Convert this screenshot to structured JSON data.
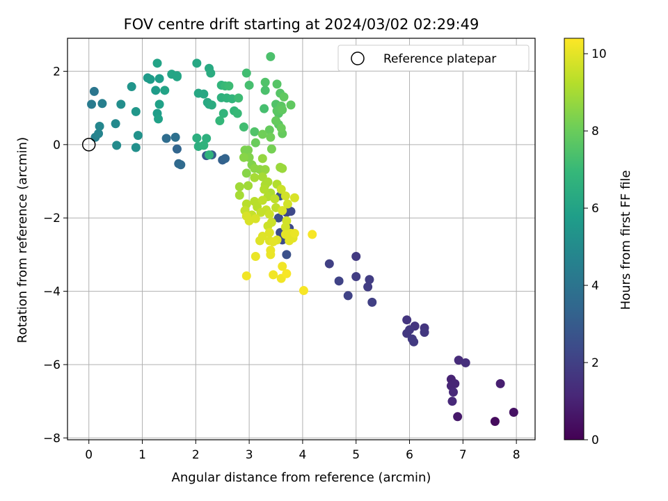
{
  "chart_data": {
    "type": "scatter",
    "title": "FOV centre drift starting at 2024/03/02 02:29:49",
    "xlabel": "Angular distance from reference (arcmin)",
    "ylabel": "Rotation from reference (arcmin)",
    "xlim": [
      -0.4,
      8.35
    ],
    "ylim": [
      -8.05,
      2.9
    ],
    "xticks": [
      0,
      1,
      2,
      3,
      4,
      5,
      6,
      7,
      8
    ],
    "xtick_labels": [
      "0",
      "1",
      "2",
      "3",
      "4",
      "5",
      "6",
      "7",
      "8"
    ],
    "yticks": [
      2,
      0,
      -2,
      -4,
      -6,
      -8
    ],
    "ytick_labels": [
      "2",
      "0",
      "−2",
      "−4",
      "−6",
      "−8"
    ],
    "grid": true,
    "legend": {
      "position": "top-right",
      "entries": [
        "Reference platepar"
      ]
    },
    "reference_point": {
      "x": 0,
      "y": 0
    },
    "colorbar": {
      "label": "Hours from first FF file",
      "range": [
        0,
        10.4
      ],
      "ticks": [
        0,
        2,
        4,
        6,
        8,
        10
      ],
      "tick_labels": [
        "0",
        "2",
        "4",
        "6",
        "8",
        "10"
      ],
      "colormap": "viridis",
      "colors": [
        "#440154",
        "#482878",
        "#3e4989",
        "#31688e",
        "#26828e",
        "#1f9e89",
        "#35b779",
        "#6ece58",
        "#b5de2b",
        "#fde725"
      ]
    },
    "series": [
      {
        "points": [
          [
            7.6,
            -7.55,
            0.3
          ],
          [
            7.95,
            -7.3,
            0.5
          ],
          [
            6.9,
            -7.42,
            0.7
          ],
          [
            7.7,
            -6.52,
            0.9
          ],
          [
            6.78,
            -6.4,
            1.0
          ],
          [
            6.85,
            -6.52,
            1.1
          ],
          [
            6.78,
            -6.58,
            1.1
          ],
          [
            6.82,
            -6.75,
            1.2
          ],
          [
            6.8,
            -7.0,
            1.2
          ],
          [
            6.92,
            -5.88,
            1.3
          ],
          [
            7.05,
            -5.95,
            1.4
          ],
          [
            5.95,
            -4.78,
            1.6
          ],
          [
            6.1,
            -4.95,
            1.6
          ],
          [
            6.28,
            -5.0,
            1.6
          ],
          [
            6.0,
            -5.05,
            1.7
          ],
          [
            5.95,
            -5.15,
            1.7
          ],
          [
            6.28,
            -5.12,
            1.7
          ],
          [
            6.05,
            -5.3,
            1.8
          ],
          [
            6.08,
            -5.38,
            1.8
          ],
          [
            5.0,
            -3.05,
            1.8
          ],
          [
            5.0,
            -3.6,
            1.9
          ],
          [
            5.25,
            -3.68,
            1.9
          ],
          [
            5.22,
            -3.88,
            1.9
          ],
          [
            5.3,
            -4.3,
            2.0
          ],
          [
            4.5,
            -3.25,
            2.0
          ],
          [
            4.68,
            -3.72,
            2.1
          ],
          [
            4.85,
            -4.12,
            2.1
          ],
          [
            3.7,
            -1.85,
            2.2
          ],
          [
            3.78,
            -1.82,
            2.3
          ],
          [
            3.75,
            -2.28,
            2.3
          ],
          [
            3.58,
            -2.4,
            2.4
          ],
          [
            3.62,
            -2.6,
            2.4
          ],
          [
            3.55,
            -2.0,
            2.5
          ],
          [
            3.7,
            -3.0,
            2.6
          ],
          [
            3.58,
            -1.4,
            2.7
          ],
          [
            2.2,
            -0.3,
            2.9
          ],
          [
            2.3,
            -0.28,
            3.1
          ],
          [
            2.5,
            -0.42,
            3.2
          ],
          [
            2.55,
            -0.38,
            3.3
          ],
          [
            1.65,
            -0.12,
            3.4
          ],
          [
            1.68,
            -0.52,
            3.5
          ],
          [
            1.72,
            -0.55,
            3.6
          ],
          [
            1.45,
            0.17,
            3.7
          ],
          [
            1.62,
            0.2,
            3.8
          ],
          [
            0.1,
            1.45,
            4.1
          ],
          [
            0.05,
            1.1,
            4.3
          ],
          [
            0.25,
            1.12,
            4.5
          ],
          [
            0.12,
            0.2,
            4.6
          ],
          [
            0.18,
            0.3,
            4.7
          ],
          [
            0.2,
            0.5,
            4.8
          ],
          [
            0.5,
            0.57,
            4.9
          ],
          [
            0.52,
            -0.02,
            5.0
          ],
          [
            0.6,
            1.1,
            5.1
          ],
          [
            0.88,
            -0.08,
            5.2
          ],
          [
            0.92,
            0.25,
            5.3
          ],
          [
            0.8,
            1.58,
            5.4
          ],
          [
            0.88,
            0.9,
            5.5
          ],
          [
            1.1,
            1.82,
            5.6
          ],
          [
            1.15,
            1.78,
            5.7
          ],
          [
            1.25,
            1.48,
            5.7
          ],
          [
            1.32,
            1.8,
            5.8
          ],
          [
            1.28,
            0.85,
            5.8
          ],
          [
            1.3,
            0.7,
            5.9
          ],
          [
            1.32,
            1.1,
            5.9
          ],
          [
            1.42,
            1.48,
            6.0
          ],
          [
            1.28,
            2.22,
            6.0
          ],
          [
            1.55,
            1.92,
            6.1
          ],
          [
            1.65,
            1.85,
            6.1
          ],
          [
            1.65,
            1.88,
            6.1
          ],
          [
            2.05,
            1.4,
            6.2
          ],
          [
            2.15,
            1.38,
            6.2
          ],
          [
            2.02,
            2.22,
            6.2
          ],
          [
            2.25,
            2.08,
            6.3
          ],
          [
            2.22,
            1.15,
            6.3
          ],
          [
            2.25,
            1.1,
            6.3
          ],
          [
            2.28,
            1.95,
            6.4
          ],
          [
            2.3,
            1.08,
            6.4
          ],
          [
            2.02,
            0.18,
            6.5
          ],
          [
            2.05,
            -0.05,
            6.5
          ],
          [
            2.2,
            0.17,
            6.6
          ],
          [
            2.48,
            1.28,
            6.6
          ],
          [
            2.15,
            -0.02,
            6.7
          ],
          [
            2.25,
            -0.28,
            6.7
          ],
          [
            2.58,
            1.27,
            6.7
          ],
          [
            2.68,
            1.25,
            6.8
          ],
          [
            2.52,
            0.85,
            6.8
          ],
          [
            2.48,
            1.62,
            6.8
          ],
          [
            2.45,
            0.65,
            6.9
          ],
          [
            2.72,
            0.92,
            6.9
          ],
          [
            2.55,
            1.6,
            7.0
          ],
          [
            2.78,
            0.85,
            7.0
          ],
          [
            2.8,
            1.27,
            7.1
          ],
          [
            2.62,
            1.6,
            7.1
          ],
          [
            2.95,
            1.95,
            7.2
          ],
          [
            2.9,
            0.48,
            7.2
          ],
          [
            3.0,
            1.62,
            7.3
          ],
          [
            3.28,
            0.98,
            7.3
          ],
          [
            3.3,
            1.48,
            7.4
          ],
          [
            3.4,
            2.4,
            7.4
          ],
          [
            3.3,
            1.7,
            7.5
          ],
          [
            3.1,
            0.35,
            7.5
          ],
          [
            3.5,
            1.1,
            7.5
          ],
          [
            3.55,
            0.85,
            7.6
          ],
          [
            3.52,
            1.65,
            7.6
          ],
          [
            3.58,
            1.4,
            7.6
          ],
          [
            3.6,
            1.05,
            7.7
          ],
          [
            3.52,
            0.92,
            7.7
          ],
          [
            3.55,
            0.55,
            7.7
          ],
          [
            3.65,
            1.3,
            7.8
          ],
          [
            3.62,
            0.95,
            7.8
          ],
          [
            3.78,
            1.08,
            7.8
          ],
          [
            3.5,
            0.65,
            7.9
          ],
          [
            3.62,
            0.3,
            7.9
          ],
          [
            3.38,
            0.4,
            7.9
          ],
          [
            3.6,
            0.45,
            8.0
          ],
          [
            3.12,
            0.05,
            8.0
          ],
          [
            3.25,
            0.28,
            8.1
          ],
          [
            3.4,
            0.2,
            8.1
          ],
          [
            3.42,
            -0.12,
            8.2
          ],
          [
            2.92,
            -0.15,
            8.3
          ],
          [
            2.98,
            -0.15,
            8.3
          ],
          [
            3.0,
            -0.35,
            8.4
          ],
          [
            3.05,
            -0.55,
            8.4
          ],
          [
            2.9,
            -0.35,
            8.5
          ],
          [
            2.95,
            -0.78,
            8.5
          ],
          [
            3.1,
            -0.65,
            8.6
          ],
          [
            3.2,
            -0.68,
            8.6
          ],
          [
            3.25,
            -0.38,
            8.7
          ],
          [
            3.3,
            -0.68,
            8.7
          ],
          [
            3.58,
            -0.62,
            8.8
          ],
          [
            3.62,
            -0.65,
            8.8
          ],
          [
            2.98,
            -1.12,
            8.9
          ],
          [
            2.82,
            -1.15,
            8.9
          ],
          [
            2.82,
            -1.38,
            9.0
          ],
          [
            3.1,
            -0.9,
            9.0
          ],
          [
            3.25,
            -0.88,
            9.0
          ],
          [
            3.3,
            -1.1,
            9.1
          ],
          [
            3.35,
            -1.02,
            9.1
          ],
          [
            3.4,
            -1.32,
            9.1
          ],
          [
            3.52,
            -1.08,
            9.2
          ],
          [
            3.28,
            -1.22,
            9.2
          ],
          [
            3.35,
            -1.42,
            9.2
          ],
          [
            2.95,
            -1.62,
            9.3
          ],
          [
            3.1,
            -1.55,
            9.3
          ],
          [
            3.15,
            -1.7,
            9.3
          ],
          [
            3.25,
            -1.52,
            9.4
          ],
          [
            3.48,
            -1.48,
            9.4
          ],
          [
            3.5,
            -1.72,
            9.4
          ],
          [
            2.92,
            -1.8,
            9.5
          ],
          [
            3.05,
            -1.92,
            9.5
          ],
          [
            3.22,
            -1.85,
            9.5
          ],
          [
            3.32,
            -1.78,
            9.5
          ],
          [
            3.38,
            -1.9,
            9.6
          ],
          [
            3.35,
            -2.22,
            9.6
          ],
          [
            3.42,
            -2.12,
            9.6
          ],
          [
            3.6,
            -1.22,
            9.6
          ],
          [
            3.68,
            -1.4,
            9.7
          ],
          [
            3.72,
            -1.62,
            9.7
          ],
          [
            3.7,
            -2.08,
            9.7
          ],
          [
            3.68,
            -2.25,
            9.7
          ],
          [
            3.85,
            -1.45,
            9.8
          ],
          [
            3.62,
            -1.8,
            9.8
          ],
          [
            2.95,
            -1.95,
            9.8
          ],
          [
            3.0,
            -2.08,
            9.8
          ],
          [
            3.12,
            -2.02,
            9.8
          ],
          [
            3.52,
            -2.6,
            9.9
          ],
          [
            3.38,
            -2.4,
            9.9
          ],
          [
            3.25,
            -2.5,
            9.9
          ],
          [
            3.2,
            -2.62,
            9.9
          ],
          [
            3.38,
            -2.62,
            9.9
          ],
          [
            3.45,
            -2.65,
            10.0
          ],
          [
            3.78,
            -2.42,
            10.0
          ],
          [
            3.82,
            -2.55,
            10.0
          ],
          [
            3.75,
            -2.62,
            10.0
          ],
          [
            3.68,
            -2.45,
            10.0
          ],
          [
            3.85,
            -2.42,
            10.1
          ],
          [
            3.4,
            -2.88,
            10.1
          ],
          [
            3.4,
            -3.0,
            10.1
          ],
          [
            3.12,
            -3.05,
            10.1
          ],
          [
            2.95,
            -3.58,
            10.2
          ],
          [
            3.62,
            -3.32,
            10.2
          ],
          [
            3.45,
            -3.55,
            10.2
          ],
          [
            3.6,
            -3.65,
            10.2
          ],
          [
            3.7,
            -3.52,
            10.3
          ],
          [
            4.18,
            -2.45,
            10.3
          ],
          [
            4.02,
            -3.98,
            10.3
          ]
        ]
      }
    ]
  }
}
